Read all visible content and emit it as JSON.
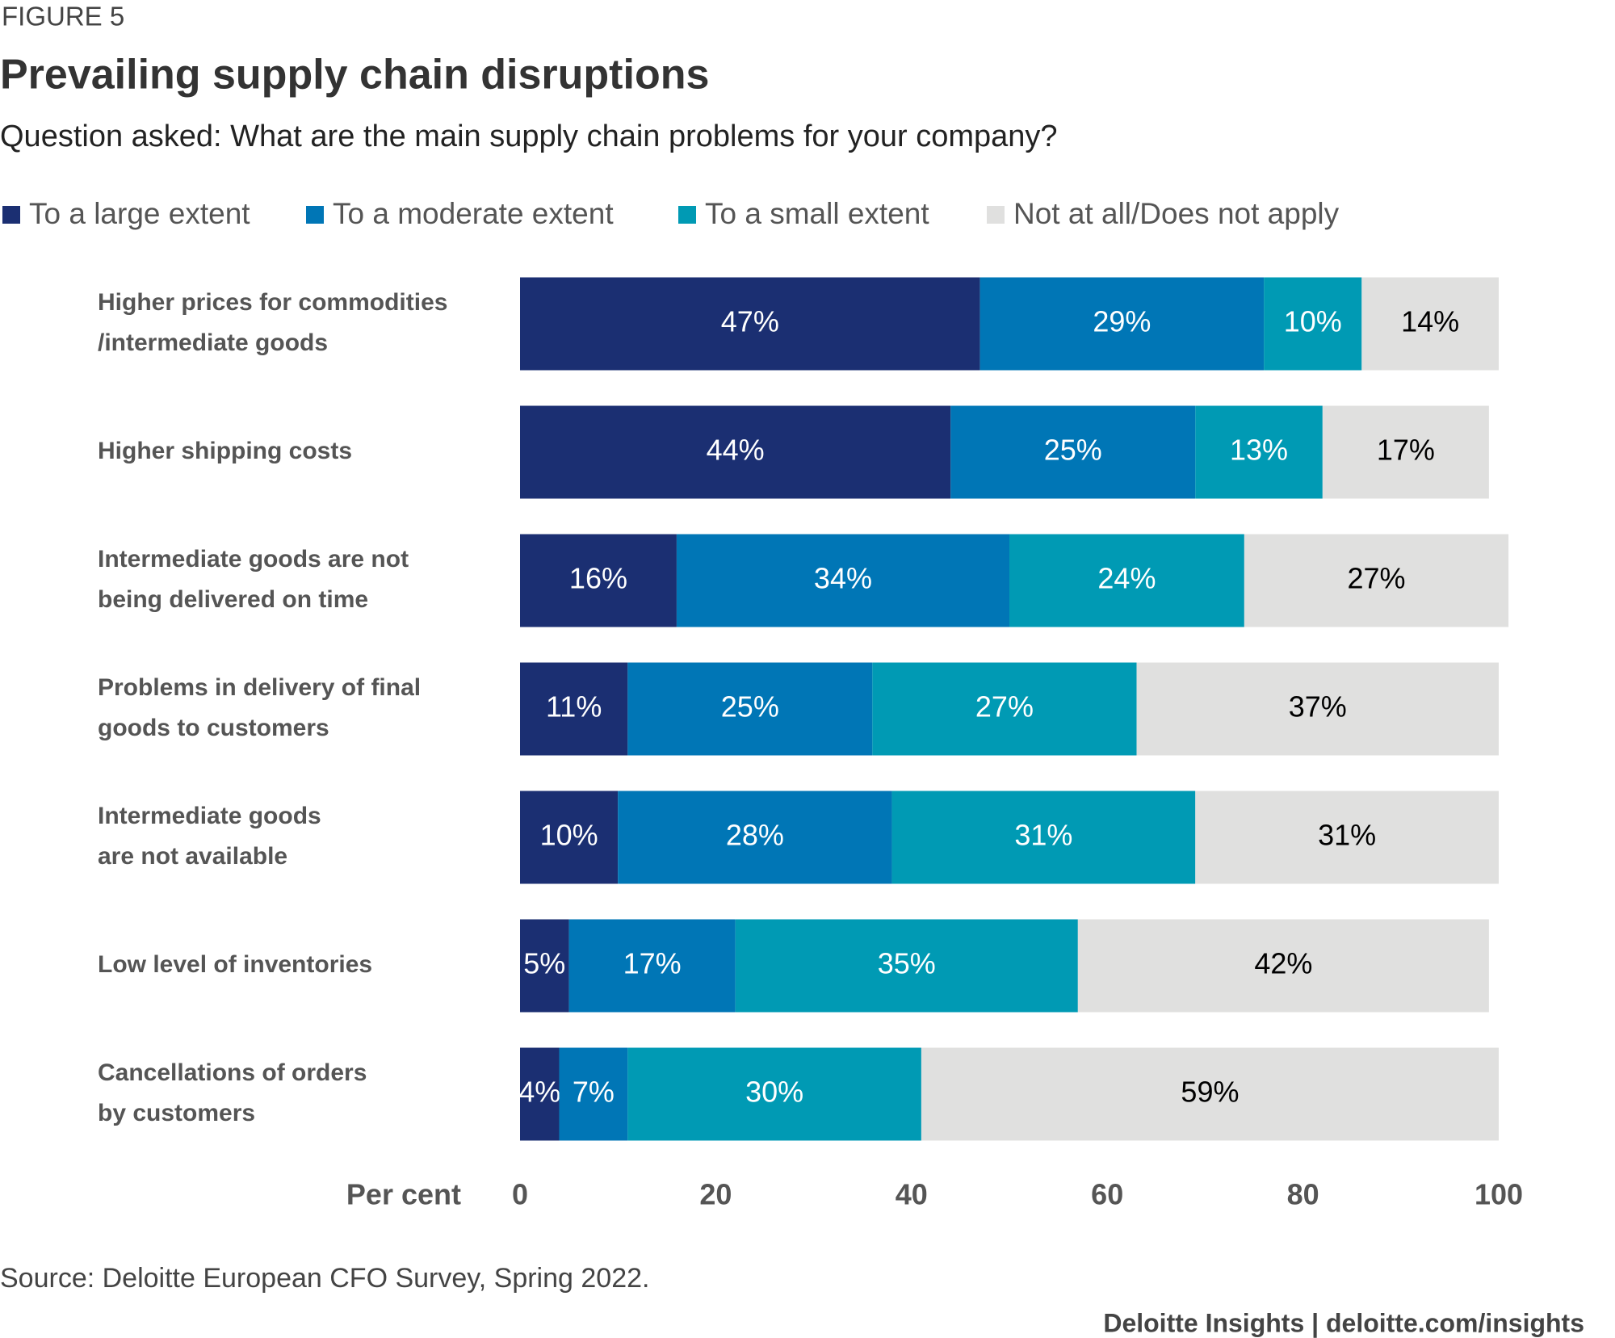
{
  "chart_data": {
    "type": "stacked_bar_horizontal",
    "figure_label": "FIGURE 5",
    "title": "Prevailing supply chain disruptions",
    "subtitle": "Question asked: What are the main supply chain problems for your company?",
    "categories": [
      [
        "Higher prices for commodities",
        "/intermediate goods"
      ],
      [
        "Higher shipping costs"
      ],
      [
        "Intermediate goods are not",
        "being delivered on time"
      ],
      [
        "Problems in delivery of final",
        "goods to customers"
      ],
      [
        "Intermediate goods",
        "are not available"
      ],
      [
        "Low level of inventories"
      ],
      [
        "Cancellations of orders",
        "by customers"
      ]
    ],
    "series": [
      {
        "name": "To a large extent",
        "color": "#1b2f72",
        "label_color": "#ffffff",
        "values": [
          47,
          44,
          16,
          11,
          10,
          5,
          4
        ],
        "value_labels": [
          "47%",
          "44%",
          "16%",
          "11%",
          "10%",
          "5%",
          "4%"
        ]
      },
      {
        "name": "To a moderate extent",
        "color": "#0076b6",
        "label_color": "#ffffff",
        "values": [
          29,
          25,
          34,
          25,
          28,
          17,
          7
        ],
        "value_labels": [
          "29%",
          "25%",
          "34%",
          "25%",
          "28%",
          "17%",
          "7%"
        ]
      },
      {
        "name": "To a small extent",
        "color": "#009ab4",
        "label_color": "#ffffff",
        "values": [
          10,
          13,
          24,
          27,
          31,
          35,
          30
        ],
        "value_labels": [
          "10%",
          "13%",
          "24%",
          "27%",
          "31%",
          "35%",
          "30%"
        ]
      },
      {
        "name": "Not at all/Does not apply",
        "color": "#e0e0df",
        "label_color": "#000000",
        "values": [
          14,
          17,
          27,
          37,
          31,
          42,
          59
        ],
        "value_labels": [
          "14%",
          "17%",
          "27%",
          "37%",
          "31%",
          "42%",
          "59%"
        ]
      }
    ],
    "xlabel": "Per cent",
    "xlim": [
      0,
      100
    ],
    "xticks": [
      0,
      20,
      40,
      60,
      80,
      100
    ],
    "source": "Source: Deloitte European CFO Survey, Spring 2022.",
    "footer": "Deloitte Insights | deloitte.com/insights"
  }
}
